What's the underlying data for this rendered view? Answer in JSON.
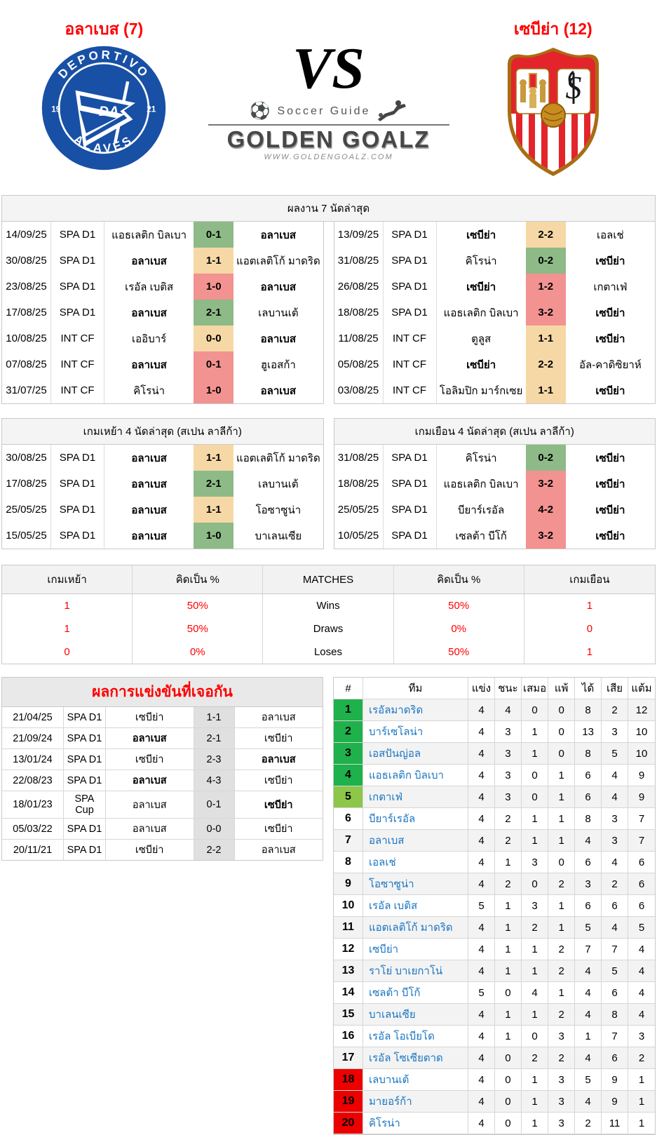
{
  "colors": {
    "win_bg": "#8dba87",
    "draw_bg": "#f6d8a6",
    "loss_bg": "#f29291",
    "h2h_score_bg": "#e0e0e0",
    "promotion_bg": "#1fb14c",
    "promotion_playoff_bg": "#8cc74a",
    "relegation_bg": "#ec0000",
    "team_link": "#1b76c2",
    "title_red": "#ff0000",
    "alaves_blue": "#1850a5",
    "sevilla_red": "#e3242b"
  },
  "header": {
    "home_team_title": "อลาเบส (7)",
    "away_team_title": "เซบีย่า (12)",
    "vs_label": "VS",
    "brand": {
      "guide": "Soccer Guide",
      "name": "GOLDEN GOALZ",
      "url": "WWW.GOLDENGOALZ.COM"
    },
    "home_logo": {
      "top": "DEPORTIVO",
      "bottom": "ALAVÉS",
      "year_left": "19",
      "year_right": "21",
      "monogram": "DA"
    },
    "away_logo": {
      "monogram": "S"
    }
  },
  "recent": {
    "title": "ผลงาน 7 นัดล่าสุด",
    "home_rows": [
      {
        "date": "14/09/25",
        "league": "SPA D1",
        "team1": "แอธเลติก บิลเบา",
        "team1_bold": false,
        "score": "0-1",
        "result": "win",
        "team2": "อลาเบส",
        "team2_bold": true
      },
      {
        "date": "30/08/25",
        "league": "SPA D1",
        "team1": "อลาเบส",
        "team1_bold": true,
        "score": "1-1",
        "result": "draw",
        "team2": "แอตเลติโก้ มาดริด",
        "team2_bold": false
      },
      {
        "date": "23/08/25",
        "league": "SPA D1",
        "team1": "เรอัล เบติส",
        "team1_bold": false,
        "score": "1-0",
        "result": "loss",
        "team2": "อลาเบส",
        "team2_bold": true
      },
      {
        "date": "17/08/25",
        "league": "SPA D1",
        "team1": "อลาเบส",
        "team1_bold": true,
        "score": "2-1",
        "result": "win",
        "team2": "เลบานเต้",
        "team2_bold": false
      },
      {
        "date": "10/08/25",
        "league": "INT CF",
        "team1": "เออิบาร์",
        "team1_bold": false,
        "score": "0-0",
        "result": "draw",
        "team2": "อลาเบส",
        "team2_bold": true
      },
      {
        "date": "07/08/25",
        "league": "INT CF",
        "team1": "อลาเบส",
        "team1_bold": true,
        "score": "0-1",
        "result": "loss",
        "team2": "ฮูเอสก้า",
        "team2_bold": false
      },
      {
        "date": "31/07/25",
        "league": "INT CF",
        "team1": "คิโรน่า",
        "team1_bold": false,
        "score": "1-0",
        "result": "loss",
        "team2": "อลาเบส",
        "team2_bold": true
      }
    ],
    "away_rows": [
      {
        "date": "13/09/25",
        "league": "SPA D1",
        "team1": "เซบีย่า",
        "team1_bold": true,
        "score": "2-2",
        "result": "draw",
        "team2": "เอลเช่",
        "team2_bold": false
      },
      {
        "date": "31/08/25",
        "league": "SPA D1",
        "team1": "คิโรน่า",
        "team1_bold": false,
        "score": "0-2",
        "result": "win",
        "team2": "เซบีย่า",
        "team2_bold": true
      },
      {
        "date": "26/08/25",
        "league": "SPA D1",
        "team1": "เซบีย่า",
        "team1_bold": true,
        "score": "1-2",
        "result": "loss",
        "team2": "เกตาเฟ่",
        "team2_bold": false
      },
      {
        "date": "18/08/25",
        "league": "SPA D1",
        "team1": "แอธเลติก บิลเบา",
        "team1_bold": false,
        "score": "3-2",
        "result": "loss",
        "team2": "เซบีย่า",
        "team2_bold": true
      },
      {
        "date": "11/08/25",
        "league": "INT CF",
        "team1": "ตูลูส",
        "team1_bold": false,
        "score": "1-1",
        "result": "draw",
        "team2": "เซบีย่า",
        "team2_bold": true
      },
      {
        "date": "05/08/25",
        "league": "INT CF",
        "team1": "เซบีย่า",
        "team1_bold": true,
        "score": "2-2",
        "result": "draw",
        "team2": "อัล-คาดิซิยาห์",
        "team2_bold": false
      },
      {
        "date": "03/08/25",
        "league": "INT CF",
        "team1": "โอลิมปิก มาร์กเซย",
        "team1_bold": false,
        "score": "1-1",
        "result": "draw",
        "team2": "เซบีย่า",
        "team2_bold": true
      }
    ]
  },
  "home4": {
    "title": "เกมเหย้า 4 นัดล่าสุด (สเปน ลาลีก้า)",
    "rows": [
      {
        "date": "30/08/25",
        "league": "SPA D1",
        "team1": "อลาเบส",
        "team1_bold": true,
        "score": "1-1",
        "result": "draw",
        "team2": "แอตเลติโก้ มาดริด",
        "team2_bold": false
      },
      {
        "date": "17/08/25",
        "league": "SPA D1",
        "team1": "อลาเบส",
        "team1_bold": true,
        "score": "2-1",
        "result": "win",
        "team2": "เลบานเต้",
        "team2_bold": false
      },
      {
        "date": "25/05/25",
        "league": "SPA D1",
        "team1": "อลาเบส",
        "team1_bold": true,
        "score": "1-1",
        "result": "draw",
        "team2": "โอซาซูน่า",
        "team2_bold": false
      },
      {
        "date": "15/05/25",
        "league": "SPA D1",
        "team1": "อลาเบส",
        "team1_bold": true,
        "score": "1-0",
        "result": "win",
        "team2": "บาเลนเซีย",
        "team2_bold": false
      }
    ]
  },
  "away4": {
    "title": "เกมเยือน 4 นัดล่าสุด (สเปน ลาลีก้า)",
    "rows": [
      {
        "date": "31/08/25",
        "league": "SPA D1",
        "team1": "คิโรน่า",
        "team1_bold": false,
        "score": "0-2",
        "result": "win",
        "team2": "เซบีย่า",
        "team2_bold": true
      },
      {
        "date": "18/08/25",
        "league": "SPA D1",
        "team1": "แอธเลติก บิลเบา",
        "team1_bold": false,
        "score": "3-2",
        "result": "loss",
        "team2": "เซบีย่า",
        "team2_bold": true
      },
      {
        "date": "25/05/25",
        "league": "SPA D1",
        "team1": "บียาร์เรอัล",
        "team1_bold": false,
        "score": "4-2",
        "result": "loss",
        "team2": "เซบีย่า",
        "team2_bold": true
      },
      {
        "date": "10/05/25",
        "league": "SPA D1",
        "team1": "เซลต้า บีโก้",
        "team1_bold": false,
        "score": "3-2",
        "result": "loss",
        "team2": "เซบีย่า",
        "team2_bold": true
      }
    ]
  },
  "comparison": {
    "columns": [
      "เกมเหย้า",
      "คิดเป็น %",
      "MATCHES",
      "คิดเป็น %",
      "เกมเยือน"
    ],
    "rows": [
      [
        "1",
        "50%",
        "Wins",
        "50%",
        "1"
      ],
      [
        "1",
        "50%",
        "Draws",
        "0%",
        "0"
      ],
      [
        "0",
        "0%",
        "Loses",
        "50%",
        "1"
      ]
    ]
  },
  "h2h": {
    "title": "ผลการแข่งขันที่เจอกัน",
    "rows": [
      {
        "date": "21/04/25",
        "league": "SPA D1",
        "team1": "เซบีย่า",
        "team1_bold": false,
        "score": "1-1",
        "team2": "อลาเบส",
        "team2_bold": false
      },
      {
        "date": "21/09/24",
        "league": "SPA D1",
        "team1": "อลาเบส",
        "team1_bold": true,
        "score": "2-1",
        "team2": "เซบีย่า",
        "team2_bold": false
      },
      {
        "date": "13/01/24",
        "league": "SPA D1",
        "team1": "เซบีย่า",
        "team1_bold": false,
        "score": "2-3",
        "team2": "อลาเบส",
        "team2_bold": true
      },
      {
        "date": "22/08/23",
        "league": "SPA D1",
        "team1": "อลาเบส",
        "team1_bold": true,
        "score": "4-3",
        "team2": "เซบีย่า",
        "team2_bold": false
      },
      {
        "date": "18/01/23",
        "league": "SPA Cup",
        "team1": "อลาเบส",
        "team1_bold": false,
        "score": "0-1",
        "team2": "เซบีย่า",
        "team2_bold": true
      },
      {
        "date": "05/03/22",
        "league": "SPA D1",
        "team1": "อลาเบส",
        "team1_bold": false,
        "score": "0-0",
        "team2": "เซบีย่า",
        "team2_bold": false
      },
      {
        "date": "20/11/21",
        "league": "SPA D1",
        "team1": "เซบีย่า",
        "team1_bold": false,
        "score": "2-2",
        "team2": "อลาเบส",
        "team2_bold": false
      }
    ]
  },
  "standings": {
    "columns": [
      "#",
      "ทีม",
      "แข่ง",
      "ชนะ",
      "เสมอ",
      "แพ้",
      "ได้",
      "เสีย",
      "แต้ม"
    ],
    "rows": [
      {
        "rank": "1",
        "team": "เรอัลมาดริด",
        "p": "4",
        "w": "4",
        "d": "0",
        "l": "0",
        "gf": "8",
        "ga": "2",
        "pts": "12",
        "zone": "top"
      },
      {
        "rank": "2",
        "team": "บาร์เซโลน่า",
        "p": "4",
        "w": "3",
        "d": "1",
        "l": "0",
        "gf": "13",
        "ga": "3",
        "pts": "10",
        "zone": "top"
      },
      {
        "rank": "3",
        "team": "เอสปันญ่อล",
        "p": "4",
        "w": "3",
        "d": "1",
        "l": "0",
        "gf": "8",
        "ga": "5",
        "pts": "10",
        "zone": "top"
      },
      {
        "rank": "4",
        "team": "แอธเลติก บิลเบา",
        "p": "4",
        "w": "3",
        "d": "0",
        "l": "1",
        "gf": "6",
        "ga": "4",
        "pts": "9",
        "zone": "top"
      },
      {
        "rank": "5",
        "team": "เกตาเฟ่",
        "p": "4",
        "w": "3",
        "d": "0",
        "l": "1",
        "gf": "6",
        "ga": "4",
        "pts": "9",
        "zone": "top5"
      },
      {
        "rank": "6",
        "team": "บียาร์เรอัล",
        "p": "4",
        "w": "2",
        "d": "1",
        "l": "1",
        "gf": "8",
        "ga": "3",
        "pts": "7",
        "zone": ""
      },
      {
        "rank": "7",
        "team": "อลาเบส",
        "p": "4",
        "w": "2",
        "d": "1",
        "l": "1",
        "gf": "4",
        "ga": "3",
        "pts": "7",
        "zone": ""
      },
      {
        "rank": "8",
        "team": "เอลเช่",
        "p": "4",
        "w": "1",
        "d": "3",
        "l": "0",
        "gf": "6",
        "ga": "4",
        "pts": "6",
        "zone": ""
      },
      {
        "rank": "9",
        "team": "โอซาซูน่า",
        "p": "4",
        "w": "2",
        "d": "0",
        "l": "2",
        "gf": "3",
        "ga": "2",
        "pts": "6",
        "zone": ""
      },
      {
        "rank": "10",
        "team": "เรอัล เบติส",
        "p": "5",
        "w": "1",
        "d": "3",
        "l": "1",
        "gf": "6",
        "ga": "6",
        "pts": "6",
        "zone": ""
      },
      {
        "rank": "11",
        "team": "แอตเลติโก้ มาดริด",
        "p": "4",
        "w": "1",
        "d": "2",
        "l": "1",
        "gf": "5",
        "ga": "4",
        "pts": "5",
        "zone": ""
      },
      {
        "rank": "12",
        "team": "เซบีย่า",
        "p": "4",
        "w": "1",
        "d": "1",
        "l": "2",
        "gf": "7",
        "ga": "7",
        "pts": "4",
        "zone": ""
      },
      {
        "rank": "13",
        "team": "ราโย่ บาเยกาโน่",
        "p": "4",
        "w": "1",
        "d": "1",
        "l": "2",
        "gf": "4",
        "ga": "5",
        "pts": "4",
        "zone": ""
      },
      {
        "rank": "14",
        "team": "เซลต้า บีโก้",
        "p": "5",
        "w": "0",
        "d": "4",
        "l": "1",
        "gf": "4",
        "ga": "6",
        "pts": "4",
        "zone": ""
      },
      {
        "rank": "15",
        "team": "บาเลนเซีย",
        "p": "4",
        "w": "1",
        "d": "1",
        "l": "2",
        "gf": "4",
        "ga": "8",
        "pts": "4",
        "zone": ""
      },
      {
        "rank": "16",
        "team": "เรอัล โอเบียโด",
        "p": "4",
        "w": "1",
        "d": "0",
        "l": "3",
        "gf": "1",
        "ga": "7",
        "pts": "3",
        "zone": ""
      },
      {
        "rank": "17",
        "team": "เรอัล โซเซียตาด",
        "p": "4",
        "w": "0",
        "d": "2",
        "l": "2",
        "gf": "4",
        "ga": "6",
        "pts": "2",
        "zone": ""
      },
      {
        "rank": "18",
        "team": "เลบานเต้",
        "p": "4",
        "w": "0",
        "d": "1",
        "l": "3",
        "gf": "5",
        "ga": "9",
        "pts": "1",
        "zone": "bottom"
      },
      {
        "rank": "19",
        "team": "มายอร์ก้า",
        "p": "4",
        "w": "0",
        "d": "1",
        "l": "3",
        "gf": "4",
        "ga": "9",
        "pts": "1",
        "zone": "bottom"
      },
      {
        "rank": "20",
        "team": "คิโรน่า",
        "p": "4",
        "w": "0",
        "d": "1",
        "l": "3",
        "gf": "2",
        "ga": "11",
        "pts": "1",
        "zone": "bottom"
      }
    ]
  }
}
